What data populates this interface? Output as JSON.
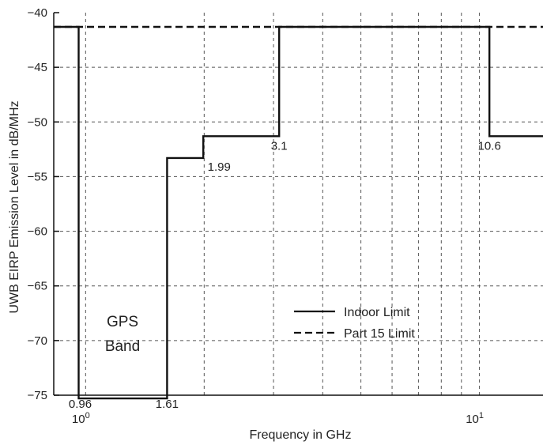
{
  "chart_data": {
    "type": "line",
    "xscale": "log",
    "xlabel": "Frequency in GHz",
    "ylabel": "UWB EIRP Emission Level in dB/MHz",
    "xlim": [
      0.83,
      14.5
    ],
    "ylim": [
      -75,
      -40
    ],
    "yticks": [
      -40,
      -45,
      -50,
      -55,
      -60,
      -65,
      -70,
      -75
    ],
    "x_tick_labels": [
      {
        "x": 1,
        "base": "10",
        "exp": "0"
      },
      {
        "x": 10,
        "base": "10",
        "exp": "1"
      }
    ],
    "grid": true,
    "series": [
      {
        "name": "Indoor Limit",
        "style": "solid",
        "points": [
          [
            0.83,
            -41.3
          ],
          [
            0.96,
            -41.3
          ],
          [
            0.96,
            -75.3
          ],
          [
            1.61,
            -75.3
          ],
          [
            1.61,
            -53.3
          ],
          [
            1.99,
            -53.3
          ],
          [
            1.99,
            -51.3
          ],
          [
            3.1,
            -51.3
          ],
          [
            3.1,
            -41.3
          ],
          [
            10.6,
            -41.3
          ],
          [
            10.6,
            -51.3
          ],
          [
            14.5,
            -51.3
          ]
        ]
      },
      {
        "name": "Part 15 Limit",
        "style": "dashed",
        "points": [
          [
            0.83,
            -41.3
          ],
          [
            14.5,
            -41.3
          ]
        ]
      }
    ],
    "annotations": [
      {
        "text": "0.96",
        "x": 0.96,
        "y": -75
      },
      {
        "text": "1.61",
        "x": 1.61,
        "y": -75
      },
      {
        "text": "1.99",
        "x": 1.99,
        "y": -53.3
      },
      {
        "text": "3.1",
        "x": 3.1,
        "y": -51.3
      },
      {
        "text": "10.6",
        "x": 10.6,
        "y": -51.3
      }
    ],
    "band_label": [
      "GPS",
      "Band"
    ],
    "legend": {
      "position": "center-right",
      "entries": [
        "Indoor Limit",
        "Part 15 Limit"
      ]
    },
    "colors": {
      "line": "#111111",
      "grid": "#555555",
      "axis": "#111111"
    }
  }
}
